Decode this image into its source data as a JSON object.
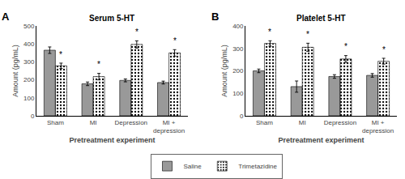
{
  "chart_data": [
    {
      "type": "bar",
      "title": "Serum 5-HT",
      "annotations": [
        "A"
      ],
      "categories": [
        "Sham",
        "MI",
        "Depression",
        "MI +\ndepression"
      ],
      "xlabel": "Pretreatment experiment",
      "ylabel": "Amount (pg/mL)",
      "series": [
        {
          "name": "Saline",
          "color": "#999999",
          "values": [
            365,
            178,
            197,
            185
          ],
          "errors": [
            18,
            10,
            8,
            8
          ]
        },
        {
          "name": "Trimetazidine",
          "color": "#cccccc",
          "values": [
            278,
            218,
            397,
            350
          ],
          "errors": [
            15,
            18,
            20,
            18
          ],
          "significance": [
            "*",
            "*",
            "*",
            "*"
          ]
        }
      ],
      "ylim": [
        0,
        500
      ],
      "yticks": [
        0,
        100,
        200,
        300,
        400,
        500
      ],
      "grid": false,
      "legend": "bottom"
    },
    {
      "type": "bar",
      "title": "Platelet 5-HT",
      "annotations": [
        "B"
      ],
      "categories": [
        "Sham",
        "MI",
        "Depression",
        "MI +\ndepression"
      ],
      "xlabel": "Pretreatment experiment",
      "ylabel": "Amount (pg/mL)",
      "series": [
        {
          "name": "Saline",
          "color": "#999999",
          "values": [
            200,
            130,
            175,
            180
          ],
          "errors": [
            8,
            25,
            8,
            8
          ]
        },
        {
          "name": "Trimetazidine",
          "color": "#cccccc",
          "values": [
            322,
            305,
            253,
            243
          ],
          "errors": [
            12,
            18,
            15,
            13
          ],
          "significance": [
            "*",
            "*",
            "*",
            "*"
          ]
        }
      ],
      "ylim": [
        0,
        400
      ],
      "yticks": [
        0,
        100,
        200,
        300,
        400
      ],
      "grid": false,
      "legend": "bottom"
    }
  ]
}
